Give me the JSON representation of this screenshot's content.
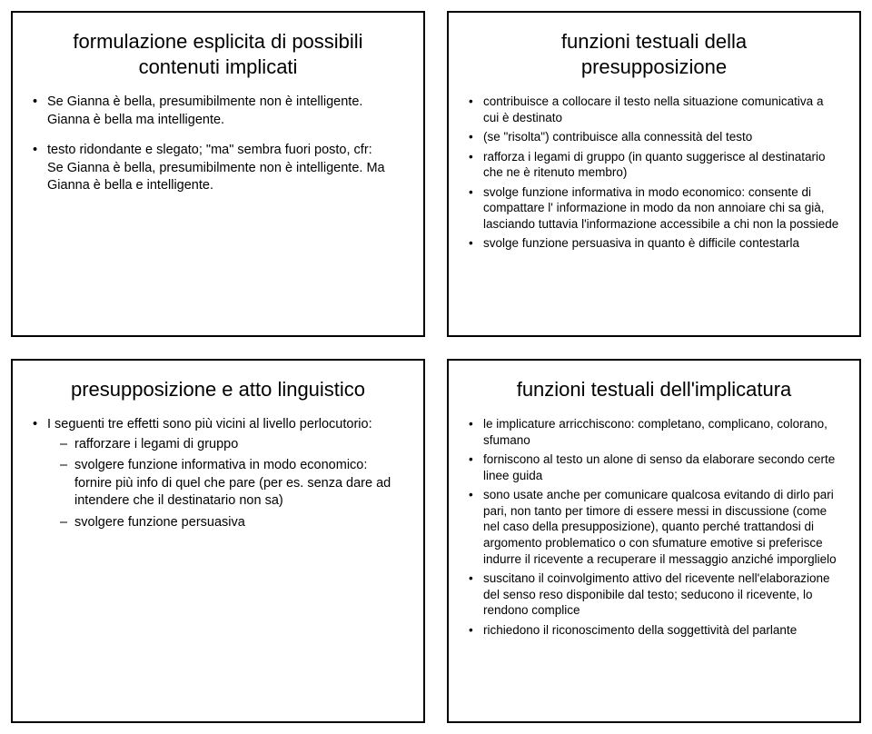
{
  "card1": {
    "title_l1": "formulazione esplicita di possibili",
    "title_l2": "contenuti implicati",
    "b1": "Se Gianna è bella, presumibilmente non è intelligente. Gianna è bella ma intelligente.",
    "b2_l1": "testo ridondante e slegato; \"ma\" sembra fuori posto, cfr:",
    "b2_l2": "Se Gianna è bella, presumibilmente non è intelligente. Ma Gianna è bella e intelligente."
  },
  "card2": {
    "title_l1": "funzioni testuali della",
    "title_l2": "presupposizione",
    "b1": "contribuisce a collocare il testo nella situazione comunicativa a cui è destinato",
    "b2": "(se \"risolta\") contribuisce alla connessità del testo",
    "b3": "rafforza i legami di gruppo (in quanto suggerisce al destinatario che ne è ritenuto membro)",
    "b4": "svolge funzione informativa in modo economico: consente di compattare l' informazione in modo da non annoiare chi sa già, lasciando tuttavia l'informazione accessibile a chi non la possiede",
    "b5": "svolge funzione persuasiva in quanto è difficile contestarla"
  },
  "card3": {
    "title": "presupposizione e atto linguistico",
    "b1": "I seguenti tre effetti sono più vicini al livello perlocutorio:",
    "d1": "rafforzare i legami di gruppo",
    "d2": "svolgere funzione informativa in modo economico: fornire più info di quel che pare (per es. senza dare ad intendere che il destinatario non sa)",
    "d3": "svolgere funzione persuasiva"
  },
  "card4": {
    "title": "funzioni testuali dell'implicatura",
    "b1": "le implicature arricchiscono: completano, complicano, colorano, sfumano",
    "b2": "forniscono al testo un alone di senso da elaborare secondo certe linee guida",
    "b3": "sono usate anche per comunicare qualcosa evitando di dirlo pari pari, non tanto per timore di essere messi in discussione (come nel caso della presupposizione), quanto perché trattandosi di argomento problematico o con sfumature emotive si preferisce indurre il ricevente a recuperare il messaggio anziché imporglielo",
    "b4": "suscitano il coinvolgimento attivo del ricevente nell'elaborazione del senso reso disponibile dal testo; seducono il ricevente, lo rendono complice",
    "b5": "richiedono il riconoscimento della soggettività del parlante"
  }
}
